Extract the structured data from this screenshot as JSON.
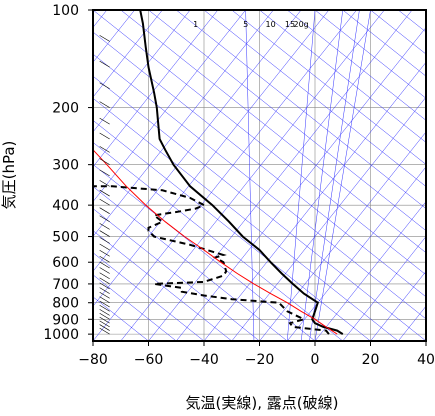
{
  "chart_data": {
    "type": "line",
    "title": "",
    "xlabel": "気温(実線), 露点(破線)",
    "ylabel": "気圧(hPa)",
    "xlim": [
      -80,
      40
    ],
    "ylim": [
      1050,
      100
    ],
    "y_scale": "log",
    "x_ticks": [
      -80,
      -60,
      -40,
      -20,
      0,
      20,
      40
    ],
    "x_tick_labels": [
      "−80",
      "−60",
      "−40",
      "−20",
      "0",
      "20",
      "40"
    ],
    "y_ticks": [
      100,
      200,
      300,
      400,
      500,
      600,
      700,
      800,
      900,
      1000
    ],
    "y_tick_labels": [
      "100",
      "200",
      "300",
      "400",
      "500",
      "600",
      "700",
      "800",
      "900",
      "1000"
    ],
    "mixing_ratio_labels": [
      "1",
      "5",
      "10",
      "15",
      "20g"
    ],
    "series": [
      {
        "role": "temperature",
        "color": "#000000",
        "style": "solid",
        "points": [
          [
            10,
            1000
          ],
          [
            8,
            975
          ],
          [
            3,
            950
          ],
          [
            0,
            925
          ],
          [
            -1,
            900
          ],
          [
            0,
            850
          ],
          [
            1,
            800
          ],
          [
            -4,
            750
          ],
          [
            -8,
            700
          ],
          [
            -12,
            650
          ],
          [
            -16,
            600
          ],
          [
            -20,
            550
          ],
          [
            -26,
            500
          ],
          [
            -31,
            450
          ],
          [
            -37,
            400
          ],
          [
            -45,
            350
          ],
          [
            -51,
            300
          ],
          [
            -54,
            270
          ],
          [
            -56,
            250
          ],
          [
            -57,
            200
          ],
          [
            -58,
            180
          ],
          [
            -60,
            150
          ],
          [
            -61,
            130
          ],
          [
            -62,
            110
          ],
          [
            -63,
            100
          ]
        ]
      },
      {
        "role": "dewpoint",
        "color": "#000000",
        "style": "dashed",
        "points": [
          [
            5,
            1000
          ],
          [
            4,
            975
          ],
          [
            -8,
            950
          ],
          [
            -9,
            925
          ],
          [
            -4,
            900
          ],
          [
            -10,
            850
          ],
          [
            -13,
            800
          ],
          [
            -30,
            780
          ],
          [
            -40,
            760
          ],
          [
            -48,
            740
          ],
          [
            -48,
            720
          ],
          [
            -58,
            700
          ],
          [
            -40,
            690
          ],
          [
            -33,
            660
          ],
          [
            -32,
            640
          ],
          [
            -33,
            600
          ],
          [
            -36,
            580
          ],
          [
            -33,
            570
          ],
          [
            -45,
            530
          ],
          [
            -58,
            500
          ],
          [
            -60,
            480
          ],
          [
            -60,
            470
          ],
          [
            -55,
            450
          ],
          [
            -58,
            430
          ],
          [
            -50,
            420
          ],
          [
            -43,
            410
          ],
          [
            -40,
            400
          ],
          [
            -45,
            380
          ],
          [
            -55,
            360
          ],
          [
            -73,
            350
          ],
          [
            -80,
            350
          ]
        ]
      },
      {
        "role": "reference",
        "color": "#ff0000",
        "style": "solid",
        "points": [
          [
            8,
            1000
          ],
          [
            4,
            950
          ],
          [
            0,
            900
          ],
          [
            -5,
            850
          ],
          [
            -10,
            800
          ],
          [
            -16,
            750
          ],
          [
            -22,
            700
          ],
          [
            -28,
            650
          ],
          [
            -34,
            600
          ],
          [
            -40,
            550
          ],
          [
            -47,
            500
          ],
          [
            -54,
            450
          ],
          [
            -61,
            400
          ],
          [
            -68,
            350
          ],
          [
            -75,
            300
          ],
          [
            -80,
            270
          ]
        ]
      }
    ],
    "wind_barb_column_x": -74,
    "grid": true,
    "background_lines_color": "#3333ff"
  }
}
